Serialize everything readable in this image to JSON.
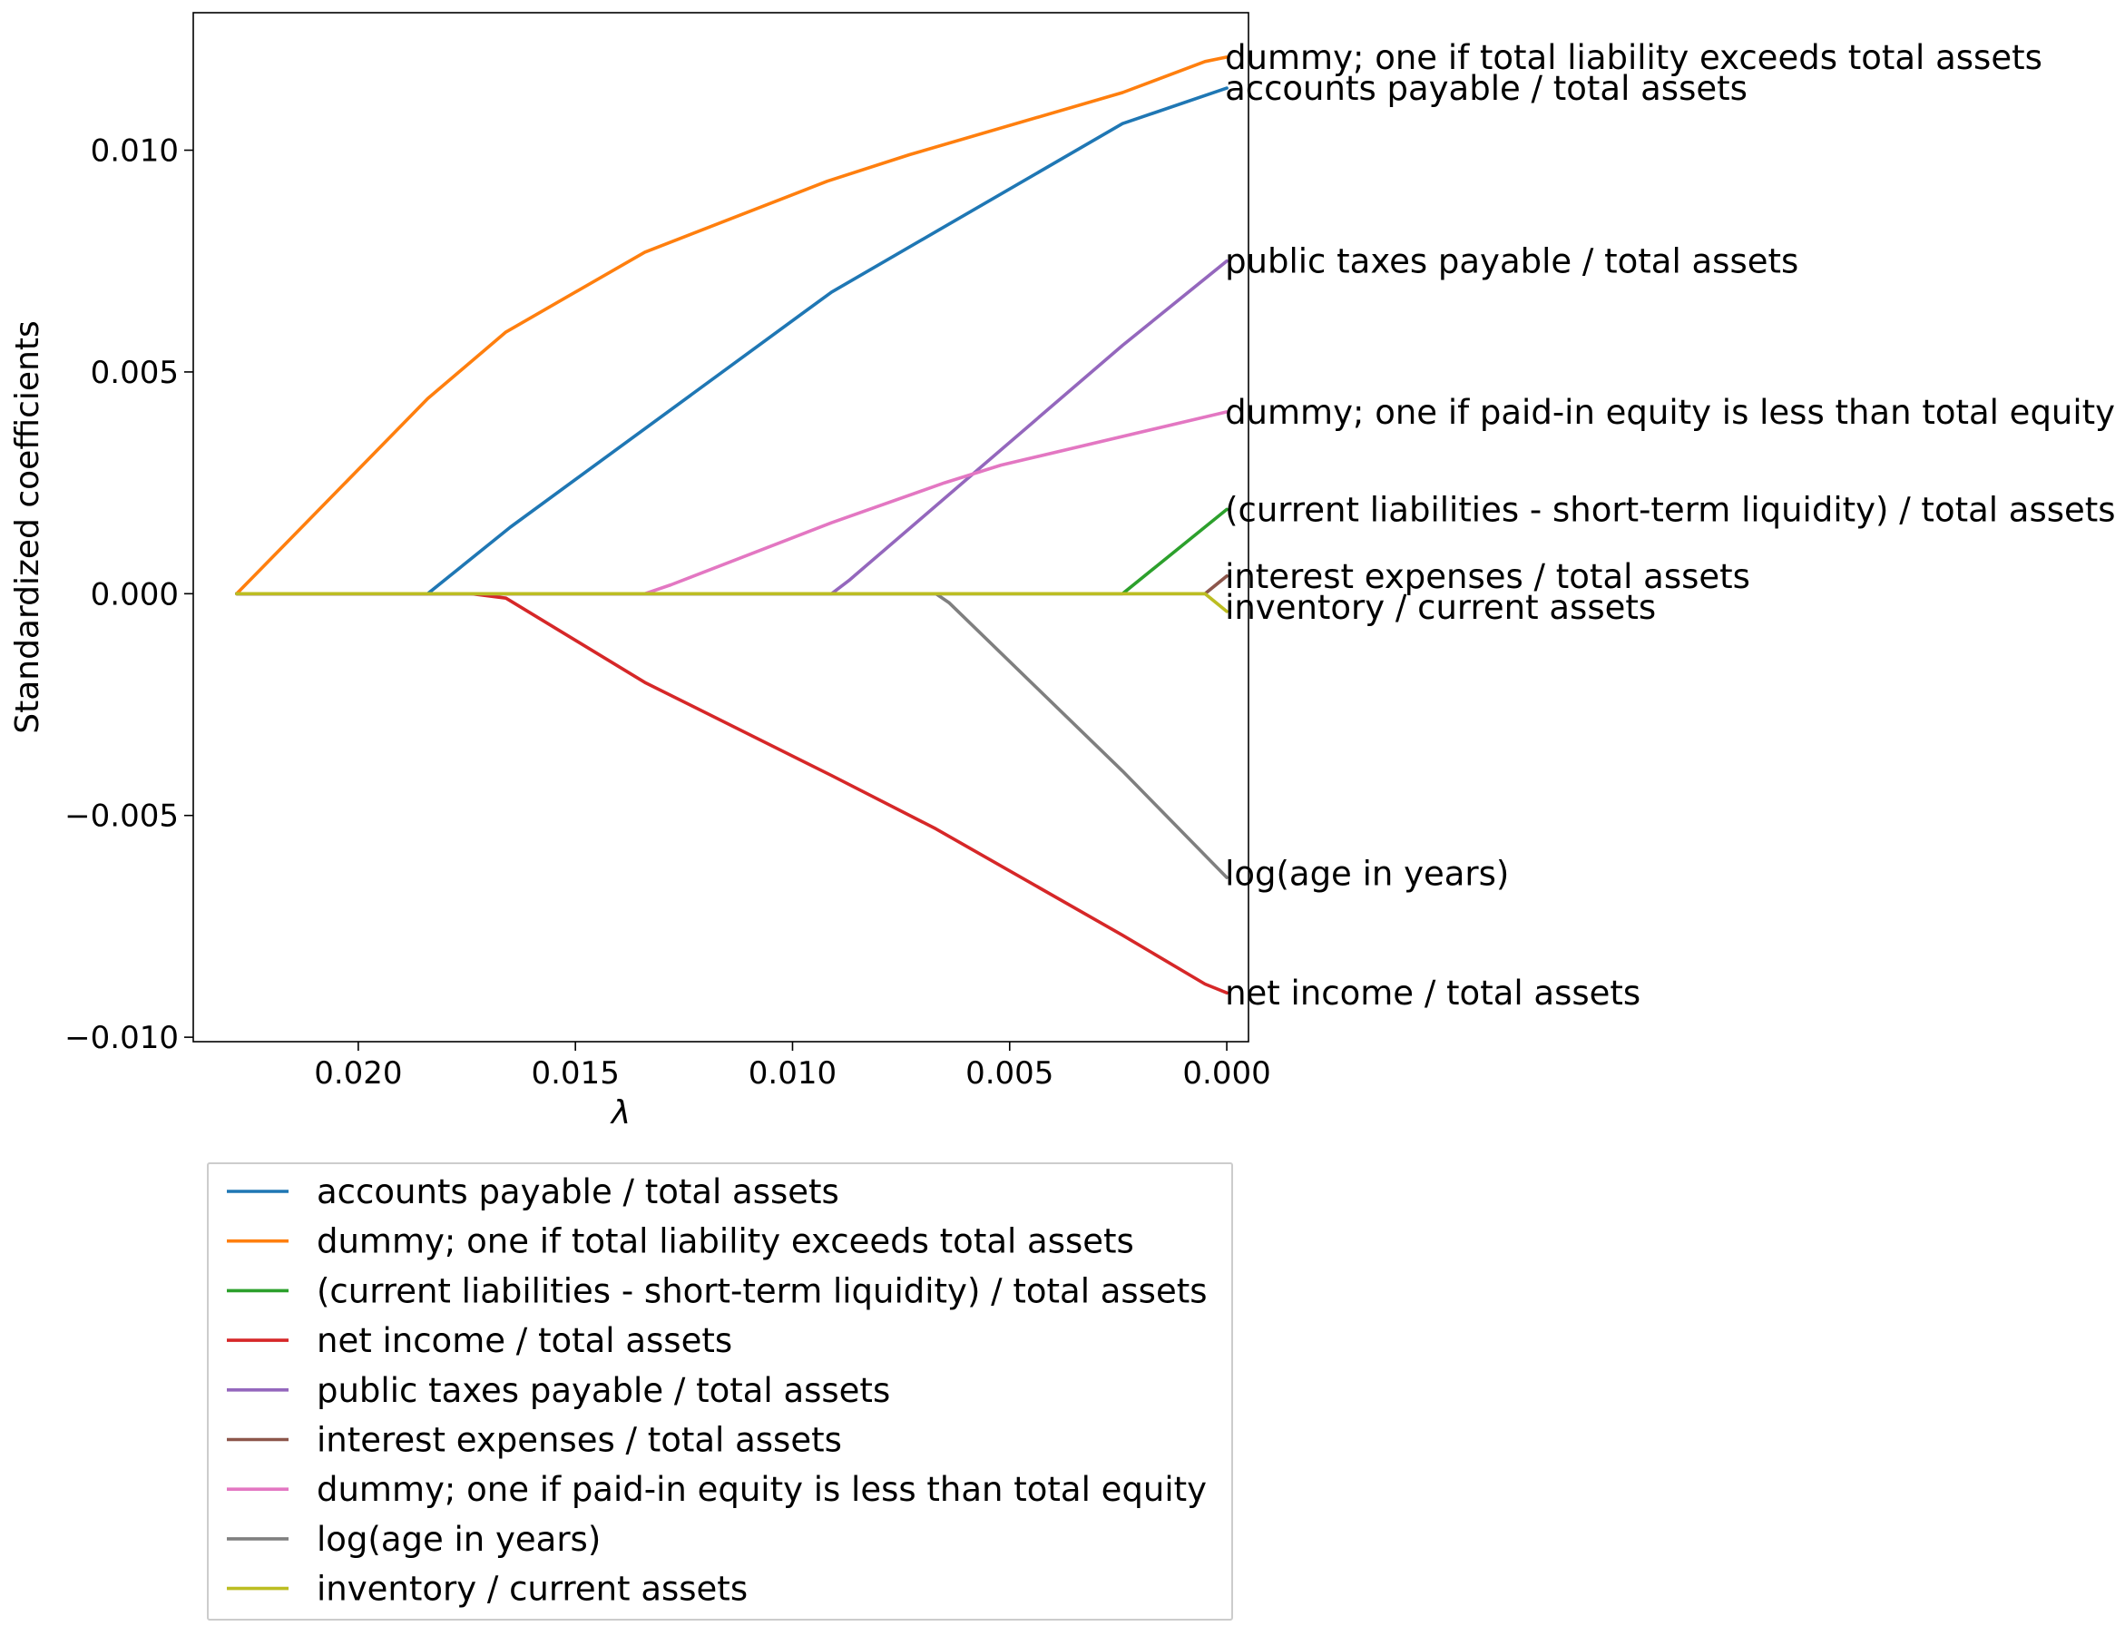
{
  "chart_data": {
    "type": "line",
    "title": "",
    "xlabel": "λ",
    "ylabel": "Standardized coefficients",
    "x_reversed": true,
    "xlim": [
      0.0238,
      -0.0005
    ],
    "ylim": [
      -0.0101,
      0.0131
    ],
    "grid": false,
    "legend_position": "below",
    "x_ticks": [
      {
        "value": 0.02,
        "label": "0.020"
      },
      {
        "value": 0.015,
        "label": "0.015"
      },
      {
        "value": 0.01,
        "label": "0.010"
      },
      {
        "value": 0.005,
        "label": "0.005"
      },
      {
        "value": 0.0,
        "label": "0.000"
      }
    ],
    "y_ticks": [
      {
        "value": 0.01,
        "label": "0.010"
      },
      {
        "value": 0.005,
        "label": "0.005"
      },
      {
        "value": 0.0,
        "label": "0.000"
      },
      {
        "value": -0.005,
        "label": "−0.005"
      },
      {
        "value": -0.01,
        "label": "−0.010"
      }
    ],
    "series": [
      {
        "name": "accounts payable / total assets",
        "color": "#1f77b4",
        "points": [
          [
            0.0228,
            0
          ],
          [
            0.0184,
            0
          ],
          [
            0.0165,
            0.0015
          ],
          [
            0.0091,
            0.0068
          ],
          [
            0.0024,
            0.0106
          ],
          [
            0.0,
            0.0114
          ]
        ]
      },
      {
        "name": "dummy; one if total liability exceeds total assets",
        "color": "#ff7f0e",
        "points": [
          [
            0.0228,
            0
          ],
          [
            0.0184,
            0.0044
          ],
          [
            0.0166,
            0.0059
          ],
          [
            0.0134,
            0.0077
          ],
          [
            0.0092,
            0.0093
          ],
          [
            0.0073,
            0.0099
          ],
          [
            0.0024,
            0.0113
          ],
          [
            0.0005,
            0.012
          ],
          [
            0.0,
            0.0121
          ]
        ]
      },
      {
        "name": "(current liabilities - short-term liquidity) / total assets",
        "color": "#2ca02c",
        "points": [
          [
            0.0228,
            0
          ],
          [
            0.0024,
            0
          ],
          [
            0.0,
            0.0019
          ]
        ]
      },
      {
        "name": "net income / total assets",
        "color": "#d62728",
        "points": [
          [
            0.0228,
            0
          ],
          [
            0.0174,
            0
          ],
          [
            0.0166,
            -0.0001
          ],
          [
            0.0134,
            -0.002
          ],
          [
            0.0091,
            -0.0041
          ],
          [
            0.0067,
            -0.0053
          ],
          [
            0.0024,
            -0.0077
          ],
          [
            0.0005,
            -0.0088
          ],
          [
            0.0,
            -0.009
          ]
        ]
      },
      {
        "name": "public taxes payable / total assets",
        "color": "#9467bd",
        "points": [
          [
            0.0228,
            0
          ],
          [
            0.0091,
            0
          ],
          [
            0.0087,
            0.0003
          ],
          [
            0.0024,
            0.0056
          ],
          [
            0.0,
            0.0075
          ]
        ]
      },
      {
        "name": "interest expenses / total assets",
        "color": "#8c564b",
        "points": [
          [
            0.0228,
            0
          ],
          [
            0.0005,
            0
          ],
          [
            0.0,
            0.0004
          ]
        ]
      },
      {
        "name": "dummy; one if paid-in equity is less than total equity",
        "color": "#e377c2",
        "points": [
          [
            0.0228,
            0
          ],
          [
            0.0134,
            0
          ],
          [
            0.0128,
            0.0002
          ],
          [
            0.0091,
            0.0016
          ],
          [
            0.0065,
            0.0025
          ],
          [
            0.0052,
            0.0029
          ],
          [
            0.0,
            0.0041
          ]
        ]
      },
      {
        "name": "log(age in years)",
        "color": "#7f7f7f",
        "points": [
          [
            0.0228,
            0
          ],
          [
            0.0067,
            0
          ],
          [
            0.0064,
            -0.0002
          ],
          [
            0.0024,
            -0.004
          ],
          [
            0.0,
            -0.0064
          ]
        ]
      },
      {
        "name": "inventory / current assets",
        "color": "#bcbd22",
        "points": [
          [
            0.0228,
            0
          ],
          [
            0.0005,
            0
          ],
          [
            0.0,
            -0.0004
          ]
        ]
      }
    ],
    "end_labels": [
      {
        "text": "dummy; one if total liability exceeds total assets",
        "y": 0.0121
      },
      {
        "text": "accounts payable / total assets",
        "y": 0.0114
      },
      {
        "text": "public taxes payable / total assets",
        "y": 0.0075
      },
      {
        "text": "dummy; one if paid-in equity is less than total equity",
        "y": 0.0041
      },
      {
        "text": "(current liabilities - short-term liquidity) / total assets",
        "y": 0.0019
      },
      {
        "text": "interest expenses / total assets",
        "y": 0.0004
      },
      {
        "text": "inventory / current assets",
        "y": -0.0003
      },
      {
        "text": "log(age in years)",
        "y": -0.0063
      },
      {
        "text": "net income / total assets",
        "y": -0.009
      }
    ]
  }
}
